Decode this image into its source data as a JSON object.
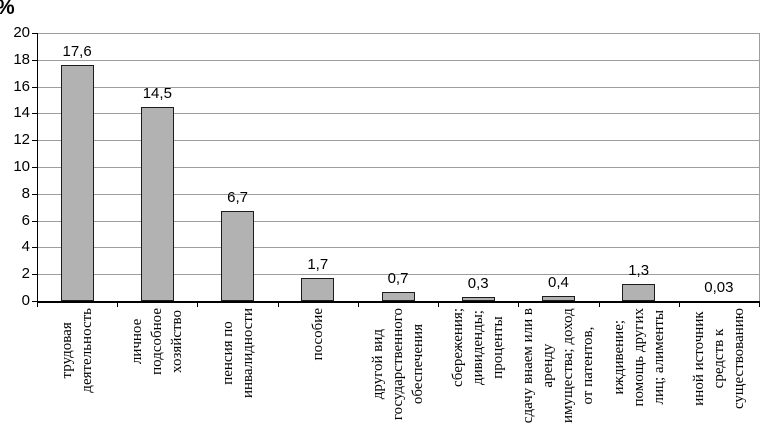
{
  "chart_data": {
    "type": "bar",
    "title": "",
    "xlabel": "",
    "ylabel": "%",
    "ylim": [
      0,
      20
    ],
    "ytick_interval": 2,
    "ytick_labels": [
      "0",
      "2",
      "4",
      "6",
      "8",
      "10",
      "12",
      "14",
      "16",
      "18",
      "20"
    ],
    "grid": true,
    "legend_position": "none",
    "categories": [
      "трудовая деятельность",
      "личное подсобное хозяйство",
      "пенсия по инвалидности",
      "пособие",
      "другой вид государственного обеспечения",
      "сбережения; дивиденды; проценты",
      "сдачу внаем или в аренду имущества; доход от патентов,",
      "иждивение; помощь других лиц; алименты",
      "иной источник средств к существованию"
    ],
    "category_label_lines": [
      [
        "трудовая",
        "деятельность"
      ],
      [
        "личное",
        "подсобное",
        "хозяйство"
      ],
      [
        "пенсия по",
        "инвалидности"
      ],
      [
        "пособие"
      ],
      [
        "другой вид",
        "государственного",
        "обеспечения"
      ],
      [
        "сбережения;",
        "дивиденды;",
        "проценты"
      ],
      [
        "сдачу внаем или в",
        "аренду",
        "имущества; доход",
        "от патентов,"
      ],
      [
        "иждивение;",
        "помощь других",
        "лиц; алименты"
      ],
      [
        "иной источник",
        "средств к",
        "существованию"
      ]
    ],
    "values": [
      17.6,
      14.5,
      6.7,
      1.7,
      0.7,
      0.3,
      0.4,
      1.3,
      0.03
    ],
    "value_labels": [
      "17,6",
      "14,5",
      "6,7",
      "1,7",
      "0,7",
      "0,3",
      "0,4",
      "1,3",
      "0,03"
    ],
    "colors": {
      "bar_fill": "#b2b2b2",
      "bar_border": "#1c1c1c",
      "gridline": "#9e9e9e",
      "plot_border": "#9e9e9e",
      "axis": "#000000",
      "text": "#000000",
      "background": "#ffffff"
    }
  }
}
